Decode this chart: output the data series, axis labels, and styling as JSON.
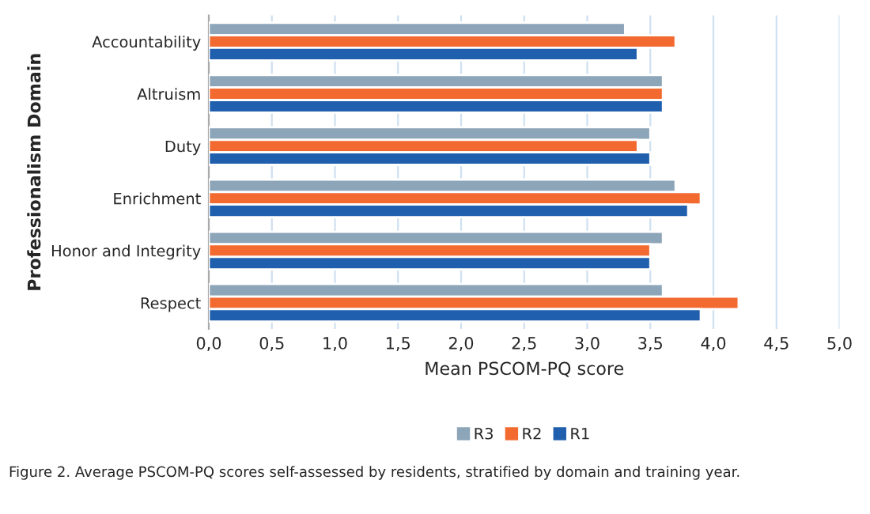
{
  "chart_data": {
    "type": "bar",
    "orientation": "horizontal",
    "categories": [
      "Accountability",
      "Altruism",
      "Duty",
      "Enrichment",
      "Honor and Integrity",
      "Respect"
    ],
    "series": [
      {
        "name": "R3",
        "color": "#8ca5b8",
        "values": [
          3.3,
          3.6,
          3.5,
          3.7,
          3.6,
          3.6
        ]
      },
      {
        "name": "R2",
        "color": "#f26a30",
        "values": [
          3.7,
          3.6,
          3.4,
          3.9,
          3.5,
          4.2
        ]
      },
      {
        "name": "R1",
        "color": "#1f5fad",
        "values": [
          3.4,
          3.6,
          3.5,
          3.8,
          3.5,
          3.9
        ]
      }
    ],
    "xlim": [
      0,
      5
    ],
    "xticks": [
      {
        "value": 0,
        "label": "0,0"
      },
      {
        "value": 0.5,
        "label": "0,5"
      },
      {
        "value": 1,
        "label": "1,0"
      },
      {
        "value": 1.5,
        "label": "1,5"
      },
      {
        "value": 2,
        "label": "2,0"
      },
      {
        "value": 2.5,
        "label": "2,5"
      },
      {
        "value": 3,
        "label": "3,0"
      },
      {
        "value": 3.5,
        "label": "3,5"
      },
      {
        "value": 4,
        "label": "4,0"
      },
      {
        "value": 4.5,
        "label": "4,5"
      },
      {
        "value": 5,
        "label": "5,0"
      }
    ],
    "xlabel": "Mean PSCOM-PQ score",
    "ylabel": "Professionalism Domain",
    "grid": "x",
    "legend": "bottom",
    "annotations": [
      "Figure 2. Average PSCOM-PQ scores self-assessed by residents, stratified by domain and training year."
    ]
  }
}
